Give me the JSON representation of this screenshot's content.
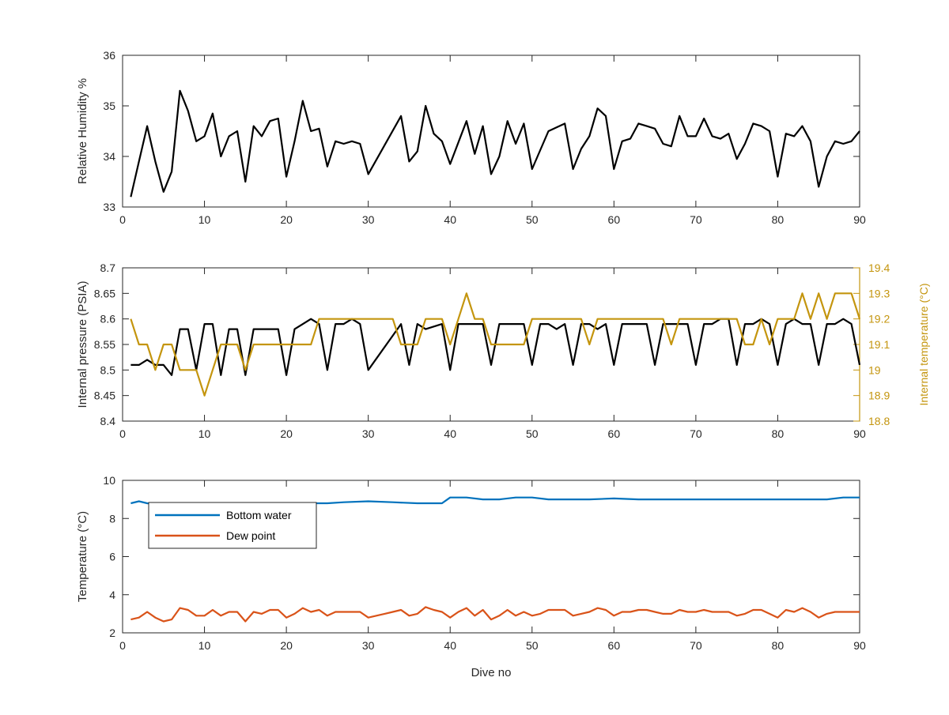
{
  "chart_data": [
    {
      "type": "line",
      "xlabel": "",
      "ylabel": "Relative Humidity %",
      "xlim": [
        0,
        90
      ],
      "ylim": [
        33,
        36
      ],
      "xticks": [
        "0",
        "10",
        "20",
        "30",
        "40",
        "50",
        "60",
        "70",
        "80",
        "90"
      ],
      "yticks": [
        "33",
        "34",
        "35",
        "36"
      ],
      "series": [
        {
          "color": "#000000",
          "x": [
            1,
            2,
            3,
            4,
            5,
            6,
            7,
            8,
            9,
            10,
            11,
            12,
            13,
            14,
            15,
            16,
            17,
            18,
            19,
            20,
            21,
            22,
            23,
            24,
            25,
            26,
            27,
            28,
            29,
            30,
            34,
            35,
            36,
            37,
            38,
            39,
            40,
            42,
            43,
            44,
            45,
            46,
            47,
            48,
            49,
            50,
            52,
            54,
            55,
            56,
            57,
            58,
            59,
            60,
            61,
            62,
            63,
            64,
            65,
            66,
            67,
            68,
            69,
            70,
            71,
            72,
            73,
            74,
            75,
            76,
            77,
            78,
            79,
            80,
            81,
            82,
            83,
            84,
            85,
            86,
            87,
            88,
            89,
            90
          ],
          "values": [
            33.2,
            33.9,
            34.6,
            33.9,
            33.3,
            33.7,
            35.3,
            34.9,
            34.3,
            34.4,
            34.85,
            34.0,
            34.4,
            34.5,
            33.5,
            34.6,
            34.4,
            34.7,
            34.75,
            33.6,
            34.3,
            35.1,
            34.5,
            34.55,
            33.8,
            34.3,
            34.25,
            34.3,
            34.25,
            33.65,
            34.8,
            33.9,
            34.1,
            35.0,
            34.45,
            34.3,
            33.85,
            34.7,
            34.05,
            34.6,
            33.65,
            34.0,
            34.7,
            34.25,
            34.65,
            33.75,
            34.5,
            34.65,
            33.75,
            34.15,
            34.4,
            34.95,
            34.8,
            33.75,
            34.3,
            34.35,
            34.65,
            34.6,
            34.55,
            34.25,
            34.2,
            34.8,
            34.4,
            34.4,
            34.75,
            34.4,
            34.35,
            34.45,
            33.95,
            34.25,
            34.65,
            34.6,
            34.5,
            33.6,
            34.45,
            34.4,
            34.6,
            34.3,
            33.4,
            34.0,
            34.3,
            34.25,
            34.3,
            34.5
          ]
        }
      ]
    },
    {
      "type": "line",
      "xlabel": "",
      "ylabel": "Internal pressure (PSIA)",
      "ylabel_right": "Internal temperature (°C)",
      "xlim": [
        0,
        90
      ],
      "ylim": [
        8.4,
        8.7
      ],
      "ylim_right": [
        18.8,
        19.4
      ],
      "xticks": [
        "0",
        "10",
        "20",
        "30",
        "40",
        "50",
        "60",
        "70",
        "80",
        "90"
      ],
      "yticks": [
        "8.4",
        "8.45",
        "8.5",
        "8.55",
        "8.6",
        "8.65",
        "8.7"
      ],
      "yticks_right": [
        "18.8",
        "18.9",
        "19",
        "19.1",
        "19.2",
        "19.3",
        "19.4"
      ],
      "series": [
        {
          "color": "#000000",
          "axis": "left",
          "x": [
            1,
            2,
            3,
            4,
            5,
            6,
            7,
            8,
            9,
            10,
            11,
            12,
            13,
            14,
            15,
            16,
            19,
            20,
            21,
            23,
            24,
            25,
            26,
            27,
            28,
            29,
            30,
            34,
            35,
            36,
            37,
            39,
            40,
            41,
            42,
            43,
            44,
            45,
            46,
            47,
            48,
            49,
            50,
            51,
            52,
            53,
            54,
            55,
            56,
            57,
            58,
            59,
            60,
            61,
            62,
            63,
            64,
            65,
            66,
            67,
            68,
            69,
            70,
            71,
            72,
            73,
            74,
            75,
            76,
            77,
            78,
            79,
            80,
            81,
            82,
            83,
            84,
            85,
            86,
            87,
            88,
            89,
            90
          ],
          "values": [
            8.51,
            8.51,
            8.52,
            8.51,
            8.51,
            8.49,
            8.58,
            8.58,
            8.5,
            8.59,
            8.59,
            8.49,
            8.58,
            8.58,
            8.49,
            8.58,
            8.58,
            8.49,
            8.58,
            8.6,
            8.59,
            8.5,
            8.59,
            8.59,
            8.6,
            8.59,
            8.5,
            8.59,
            8.51,
            8.59,
            8.58,
            8.59,
            8.5,
            8.59,
            8.59,
            8.59,
            8.59,
            8.51,
            8.59,
            8.59,
            8.59,
            8.59,
            8.51,
            8.59,
            8.59,
            8.58,
            8.59,
            8.51,
            8.59,
            8.59,
            8.58,
            8.59,
            8.51,
            8.59,
            8.59,
            8.59,
            8.59,
            8.51,
            8.59,
            8.59,
            8.59,
            8.59,
            8.51,
            8.59,
            8.59,
            8.6,
            8.6,
            8.51,
            8.59,
            8.59,
            8.6,
            8.59,
            8.51,
            8.59,
            8.6,
            8.59,
            8.59,
            8.51,
            8.59,
            8.59,
            8.6,
            8.59,
            8.51
          ]
        },
        {
          "color": "#C4950E",
          "axis": "right",
          "x": [
            1,
            2,
            3,
            4,
            5,
            6,
            7,
            8,
            9,
            10,
            11,
            12,
            13,
            14,
            15,
            16,
            17,
            18,
            19,
            20,
            21,
            22,
            23,
            24,
            25,
            26,
            27,
            28,
            29,
            30,
            31,
            32,
            33,
            34,
            35,
            36,
            37,
            38,
            39,
            40,
            41,
            42,
            43,
            44,
            45,
            46,
            47,
            48,
            49,
            50,
            51,
            52,
            53,
            54,
            55,
            56,
            57,
            58,
            59,
            60,
            61,
            62,
            63,
            64,
            65,
            66,
            67,
            68,
            69,
            70,
            71,
            72,
            73,
            74,
            75,
            76,
            77,
            78,
            79,
            80,
            81,
            82,
            83,
            84,
            85,
            86,
            87,
            88,
            89,
            90
          ],
          "values": [
            19.2,
            19.1,
            19.1,
            19.0,
            19.1,
            19.1,
            19.0,
            19.0,
            19.0,
            18.9,
            19.0,
            19.1,
            19.1,
            19.1,
            19.0,
            19.1,
            19.1,
            19.1,
            19.1,
            19.1,
            19.1,
            19.1,
            19.1,
            19.2,
            19.2,
            19.2,
            19.2,
            19.2,
            19.2,
            19.2,
            19.2,
            19.2,
            19.2,
            19.1,
            19.1,
            19.1,
            19.2,
            19.2,
            19.2,
            19.1,
            19.2,
            19.3,
            19.2,
            19.2,
            19.1,
            19.1,
            19.1,
            19.1,
            19.1,
            19.2,
            19.2,
            19.2,
            19.2,
            19.2,
            19.2,
            19.2,
            19.1,
            19.2,
            19.2,
            19.2,
            19.2,
            19.2,
            19.2,
            19.2,
            19.2,
            19.2,
            19.1,
            19.2,
            19.2,
            19.2,
            19.2,
            19.2,
            19.2,
            19.2,
            19.2,
            19.1,
            19.1,
            19.2,
            19.1,
            19.2,
            19.2,
            19.2,
            19.3,
            19.2,
            19.3,
            19.2,
            19.3,
            19.3,
            19.3,
            19.2
          ]
        }
      ]
    },
    {
      "type": "line",
      "xlabel": "Dive no",
      "ylabel": "Temperature (°C)",
      "xlim": [
        0,
        90
      ],
      "ylim": [
        2,
        10
      ],
      "xticks": [
        "0",
        "10",
        "20",
        "30",
        "40",
        "50",
        "60",
        "70",
        "80",
        "90"
      ],
      "yticks": [
        "2",
        "4",
        "6",
        "8",
        "10"
      ],
      "legend_position": "top-left",
      "series": [
        {
          "name": "Bottom water",
          "color": "#0072BD",
          "x": [
            1,
            2,
            3,
            5,
            10,
            15,
            20,
            22,
            25,
            27,
            30,
            33,
            36,
            39,
            40,
            42,
            44,
            46,
            48,
            50,
            52,
            55,
            57,
            60,
            63,
            66,
            69,
            72,
            75,
            78,
            81,
            84,
            86,
            88,
            90
          ],
          "values": [
            8.8,
            8.9,
            8.8,
            8.7,
            8.7,
            8.7,
            8.75,
            8.8,
            8.8,
            8.85,
            8.9,
            8.85,
            8.8,
            8.8,
            9.1,
            9.1,
            9.0,
            9.0,
            9.1,
            9.1,
            9.0,
            9.0,
            9.0,
            9.05,
            9.0,
            9.0,
            9.0,
            9.0,
            9.0,
            9.0,
            9.0,
            9.0,
            9.0,
            9.1,
            9.1
          ]
        },
        {
          "name": "Dew point",
          "color": "#D95319",
          "x": [
            1,
            2,
            3,
            4,
            5,
            6,
            7,
            8,
            9,
            10,
            11,
            12,
            13,
            14,
            15,
            16,
            17,
            18,
            19,
            20,
            21,
            22,
            23,
            24,
            25,
            26,
            27,
            28,
            29,
            30,
            31,
            32,
            33,
            34,
            35,
            36,
            37,
            38,
            39,
            40,
            41,
            42,
            43,
            44,
            45,
            46,
            47,
            48,
            49,
            50,
            51,
            52,
            53,
            54,
            55,
            56,
            57,
            58,
            59,
            60,
            61,
            62,
            63,
            64,
            65,
            66,
            67,
            68,
            69,
            70,
            71,
            72,
            73,
            74,
            75,
            76,
            77,
            78,
            79,
            80,
            81,
            82,
            83,
            84,
            85,
            86,
            87,
            88,
            89,
            90
          ],
          "values": [
            2.7,
            2.8,
            3.1,
            2.8,
            2.6,
            2.7,
            3.3,
            3.2,
            2.9,
            2.9,
            3.2,
            2.9,
            3.1,
            3.1,
            2.6,
            3.1,
            3.0,
            3.2,
            3.2,
            2.8,
            3.0,
            3.3,
            3.1,
            3.2,
            2.9,
            3.1,
            3.1,
            3.1,
            3.1,
            2.8,
            2.9,
            3.0,
            3.1,
            3.2,
            2.9,
            3.0,
            3.35,
            3.2,
            3.1,
            2.8,
            3.1,
            3.3,
            2.9,
            3.2,
            2.7,
            2.9,
            3.2,
            2.9,
            3.1,
            2.9,
            3.0,
            3.2,
            3.2,
            3.2,
            2.9,
            3.0,
            3.1,
            3.3,
            3.2,
            2.9,
            3.1,
            3.1,
            3.2,
            3.2,
            3.1,
            3.0,
            3.0,
            3.2,
            3.1,
            3.1,
            3.2,
            3.1,
            3.1,
            3.1,
            2.9,
            3.0,
            3.2,
            3.2,
            3.0,
            2.8,
            3.2,
            3.1,
            3.3,
            3.1,
            2.8,
            3.0,
            3.1,
            3.1,
            3.1,
            3.1
          ]
        }
      ]
    }
  ]
}
